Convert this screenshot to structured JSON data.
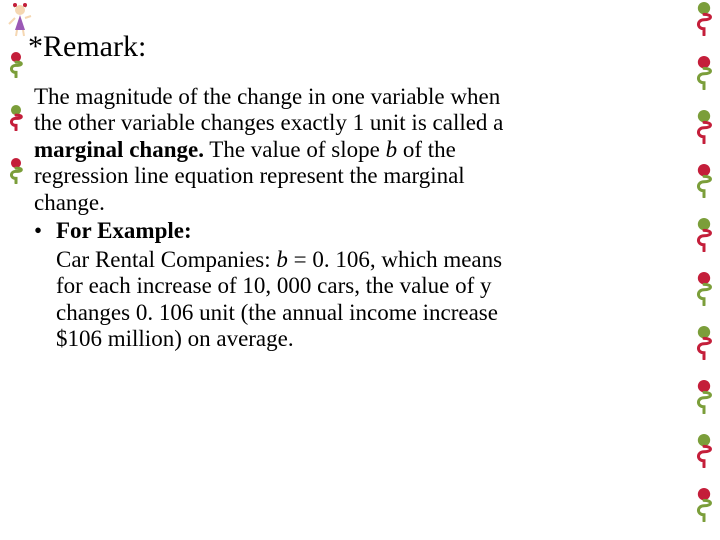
{
  "heading": "*Remark:",
  "paragraph": {
    "line1": "The magnitude of the change in one variable when",
    "line2": "the other variable changes exactly 1 unit is called a",
    "marginal": "marginal change.",
    "line3_rest": " The value of slope ",
    "b_var": "b",
    "line3_tail": " of the",
    "line4": "regression line equation represent the marginal",
    "line5": "change."
  },
  "bullet": {
    "label": "For Example:"
  },
  "example": {
    "line1_pre": " Car Rental Companies: ",
    "b_var": "b",
    "line1_post": " = 0. 106, which means",
    "line2": "for each increase of 10, 000 cars, the value of y",
    "line3": "changes 0. 106 unit (the annual income increase",
    "line4": "$106 million) on average."
  },
  "decor": {
    "left_curls": [
      {
        "stroke": "#7b9e3a",
        "ball": "#c41e3a"
      },
      {
        "stroke": "#c41e3a",
        "ball": "#7b9e3a"
      },
      {
        "stroke": "#7b9e3a",
        "ball": "#c41e3a"
      }
    ],
    "right_curls": [
      {
        "stroke": "#c41e3a",
        "ball": "#7b9e3a"
      },
      {
        "stroke": "#7b9e3a",
        "ball": "#c41e3a"
      },
      {
        "stroke": "#c41e3a",
        "ball": "#7b9e3a"
      },
      {
        "stroke": "#7b9e3a",
        "ball": "#c41e3a"
      },
      {
        "stroke": "#c41e3a",
        "ball": "#7b9e3a"
      },
      {
        "stroke": "#7b9e3a",
        "ball": "#c41e3a"
      },
      {
        "stroke": "#c41e3a",
        "ball": "#7b9e3a"
      },
      {
        "stroke": "#7b9e3a",
        "ball": "#c41e3a"
      },
      {
        "stroke": "#c41e3a",
        "ball": "#7b9e3a"
      },
      {
        "stroke": "#7b9e3a",
        "ball": "#c41e3a"
      }
    ],
    "cartoon": {
      "dress": "#9b59b6",
      "hair": "#7b9e3a",
      "skin": "#f5d7b2",
      "bow": "#c41e3a"
    }
  }
}
